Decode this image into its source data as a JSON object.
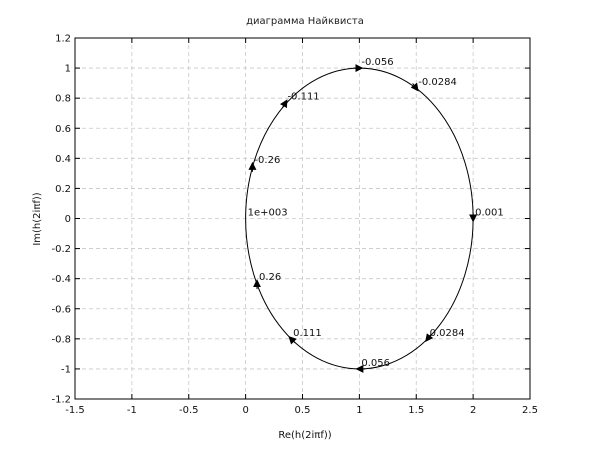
{
  "chart_data": {
    "type": "line",
    "title": "диаграмма Найквиста",
    "xlabel": "Re(h(2iπf))",
    "ylabel": "Im(h(2iπf))",
    "xlim": [
      -1.5,
      2.5
    ],
    "ylim": [
      -1.2,
      1.2
    ],
    "x_ticks": [
      -1.5,
      -1,
      -0.5,
      0,
      0.5,
      1,
      1.5,
      2,
      2.5
    ],
    "x_tick_labels": [
      "-1.5",
      "-1",
      "-0.5",
      "0",
      "0.5",
      "1",
      "1.5",
      "2",
      "2.5"
    ],
    "y_ticks": [
      -1.2,
      -1,
      -0.8,
      -0.6,
      -0.4,
      -0.2,
      0,
      0.2,
      0.4,
      0.6,
      0.8,
      1,
      1.2
    ],
    "y_tick_labels": [
      "-1.2",
      "-1",
      "-0.8",
      "-0.6",
      "-0.4",
      "-0.2",
      "0",
      "0.2",
      "0.4",
      "0.6",
      "0.8",
      "1",
      "1.2"
    ],
    "grid": true,
    "curve": {
      "type": "ellipse",
      "center": [
        1,
        0
      ],
      "radius_x": 1,
      "radius_y": 1
    },
    "annotations": [
      {
        "text": "-0.056",
        "x": 1.0,
        "y": 1.0,
        "arrow": "right"
      },
      {
        "text": "-0.0284",
        "x": 1.5,
        "y": 0.866,
        "arrow": "down-right"
      },
      {
        "text": "0.001",
        "x": 2.0,
        "y": 0.0,
        "arrow": "down"
      },
      {
        "text": "0.0284",
        "x": 1.6,
        "y": -0.8,
        "arrow": "down-left"
      },
      {
        "text": "0.056",
        "x": 1.0,
        "y": -1.0,
        "arrow": "left"
      },
      {
        "text": "0.111",
        "x": 0.4,
        "y": -0.8,
        "arrow": "up-left"
      },
      {
        "text": "0.26",
        "x": 0.1,
        "y": -0.43,
        "arrow": "up"
      },
      {
        "text": "1e+003",
        "x": 0.0,
        "y": 0.0,
        "arrow": "none"
      },
      {
        "text": "-0.26",
        "x": 0.06,
        "y": 0.35,
        "arrow": "up"
      },
      {
        "text": "-0.111",
        "x": 0.35,
        "y": 0.77,
        "arrow": "up-right"
      }
    ]
  }
}
